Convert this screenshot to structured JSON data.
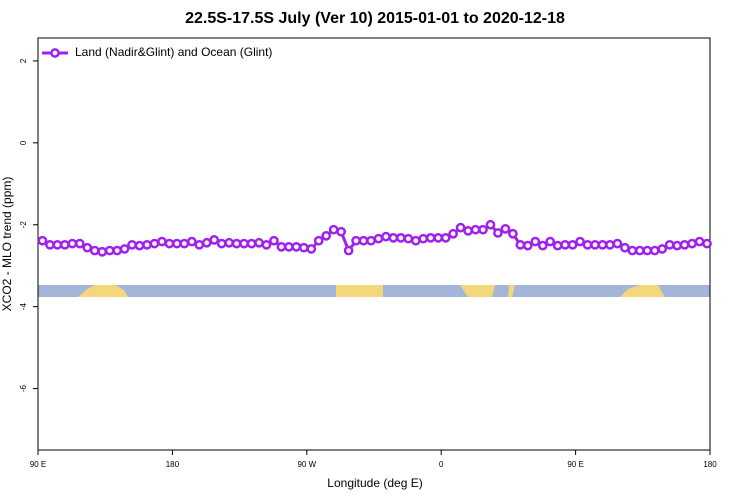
{
  "chart_data": {
    "type": "line",
    "title": "22.5S-17.5S July (Ver 10)   2015-01-01 to 2020-12-18",
    "x_label": "Longitude (deg E)",
    "y_label": "XCO2 - MLO trend (ppm)",
    "xlim": [
      90,
      540
    ],
    "xticks": [
      {
        "value": 90,
        "label": "90 E"
      },
      180,
      {
        "value": 270,
        "label": "90 W"
      },
      {
        "value": 360,
        "label": "0"
      },
      {
        "value": 450,
        "label": "90 E"
      },
      {
        "value": 540,
        "label": "180"
      }
    ],
    "ylim": [
      -7.5,
      2.56
    ],
    "yticks": [
      2,
      0,
      -2,
      -4,
      -6
    ],
    "legend": "top-left",
    "x": [
      93,
      98,
      103,
      108,
      113,
      118,
      123,
      128,
      133,
      138,
      143,
      148,
      153,
      158,
      163,
      168,
      173,
      178,
      183,
      188,
      193,
      198,
      203,
      208,
      213,
      218,
      223,
      228,
      233,
      238,
      243,
      248,
      253,
      258,
      263,
      268,
      273,
      278,
      283,
      288,
      293,
      298,
      303,
      308,
      313,
      318,
      323,
      328,
      333,
      338,
      343,
      348,
      353,
      358,
      363,
      368,
      373,
      378,
      383,
      388,
      393,
      398,
      403,
      408,
      413,
      418,
      423,
      428,
      433,
      438,
      443,
      448,
      453,
      458,
      463,
      468,
      473,
      478,
      483,
      488,
      493,
      498,
      503,
      508,
      513,
      518,
      523,
      528,
      533,
      538
    ],
    "series": [
      {
        "name": "Land (Nadir&Glint) and Ocean (Glint)",
        "color": "#a020f0",
        "values": [
          -2.39,
          -2.49,
          -2.49,
          -2.49,
          -2.46,
          -2.46,
          -2.56,
          -2.63,
          -2.66,
          -2.63,
          -2.63,
          -2.59,
          -2.49,
          -2.51,
          -2.49,
          -2.46,
          -2.41,
          -2.46,
          -2.46,
          -2.46,
          -2.41,
          -2.49,
          -2.44,
          -2.37,
          -2.46,
          -2.44,
          -2.46,
          -2.46,
          -2.46,
          -2.44,
          -2.49,
          -2.39,
          -2.54,
          -2.54,
          -2.54,
          -2.56,
          -2.59,
          -2.39,
          -2.27,
          -2.12,
          -2.17,
          -2.63,
          -2.39,
          -2.39,
          -2.39,
          -2.34,
          -2.29,
          -2.32,
          -2.32,
          -2.34,
          -2.39,
          -2.34,
          -2.32,
          -2.32,
          -2.32,
          -2.22,
          -2.07,
          -2.15,
          -2.12,
          -2.12,
          -2.0,
          -2.2,
          -2.1,
          -2.22,
          -2.49,
          -2.51,
          -2.41,
          -2.51,
          -2.41,
          -2.51,
          -2.49,
          -2.49,
          -2.41,
          -2.49,
          -2.49,
          -2.49,
          -2.49,
          -2.46,
          -2.56,
          -2.63,
          -2.63,
          -2.63,
          -2.63,
          -2.59,
          -2.49,
          -2.51,
          -2.49,
          -2.46,
          -2.41,
          -2.46
        ]
      }
    ]
  }
}
